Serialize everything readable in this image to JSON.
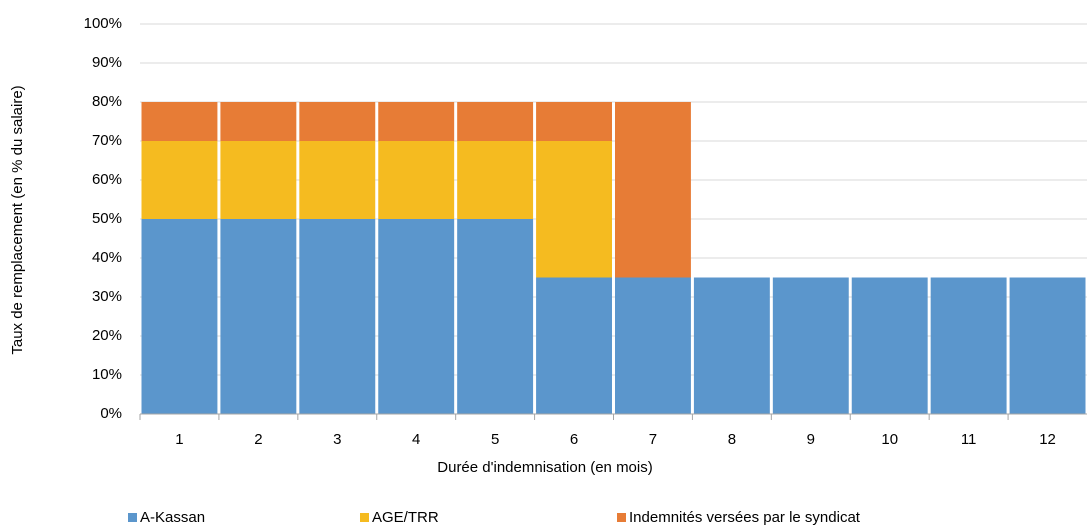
{
  "chart_data": {
    "type": "stacked_bar",
    "x_label": "Durée d'indemnisation (en mois)",
    "y_label": "Taux de remplacement (en % du salaire)",
    "categories": [
      "1",
      "2",
      "3",
      "4",
      "5",
      "6",
      "7",
      "8",
      "9",
      "10",
      "11",
      "12"
    ],
    "series": [
      {
        "name": "A-Kassan",
        "color": "#5b96cc",
        "values": [
          50,
          50,
          50,
          50,
          50,
          35,
          35,
          35,
          35,
          35,
          35,
          35
        ]
      },
      {
        "name": "AGE/TRR",
        "color": "#f5bb20",
        "values": [
          20,
          20,
          20,
          20,
          20,
          35,
          0,
          0,
          0,
          0,
          0,
          0
        ]
      },
      {
        "name": "Indemnités versées par le syndicat",
        "color": "#e77c36",
        "values": [
          10,
          10,
          10,
          10,
          10,
          10,
          45,
          0,
          0,
          0,
          0,
          0
        ]
      }
    ],
    "ylim": [
      0,
      100
    ],
    "yticks": [
      {
        "value": 0,
        "label": "0%"
      },
      {
        "value": 10,
        "label": "10%"
      },
      {
        "value": 20,
        "label": "20%"
      },
      {
        "value": 30,
        "label": "30%"
      },
      {
        "value": 40,
        "label": "40%"
      },
      {
        "value": 50,
        "label": "50%"
      },
      {
        "value": 60,
        "label": "60%"
      },
      {
        "value": 70,
        "label": "70%"
      },
      {
        "value": 80,
        "label": "80%"
      },
      {
        "value": 90,
        "label": "90%"
      },
      {
        "value": 100,
        "label": "100%"
      }
    ],
    "grid": true,
    "legend": "bottom"
  }
}
